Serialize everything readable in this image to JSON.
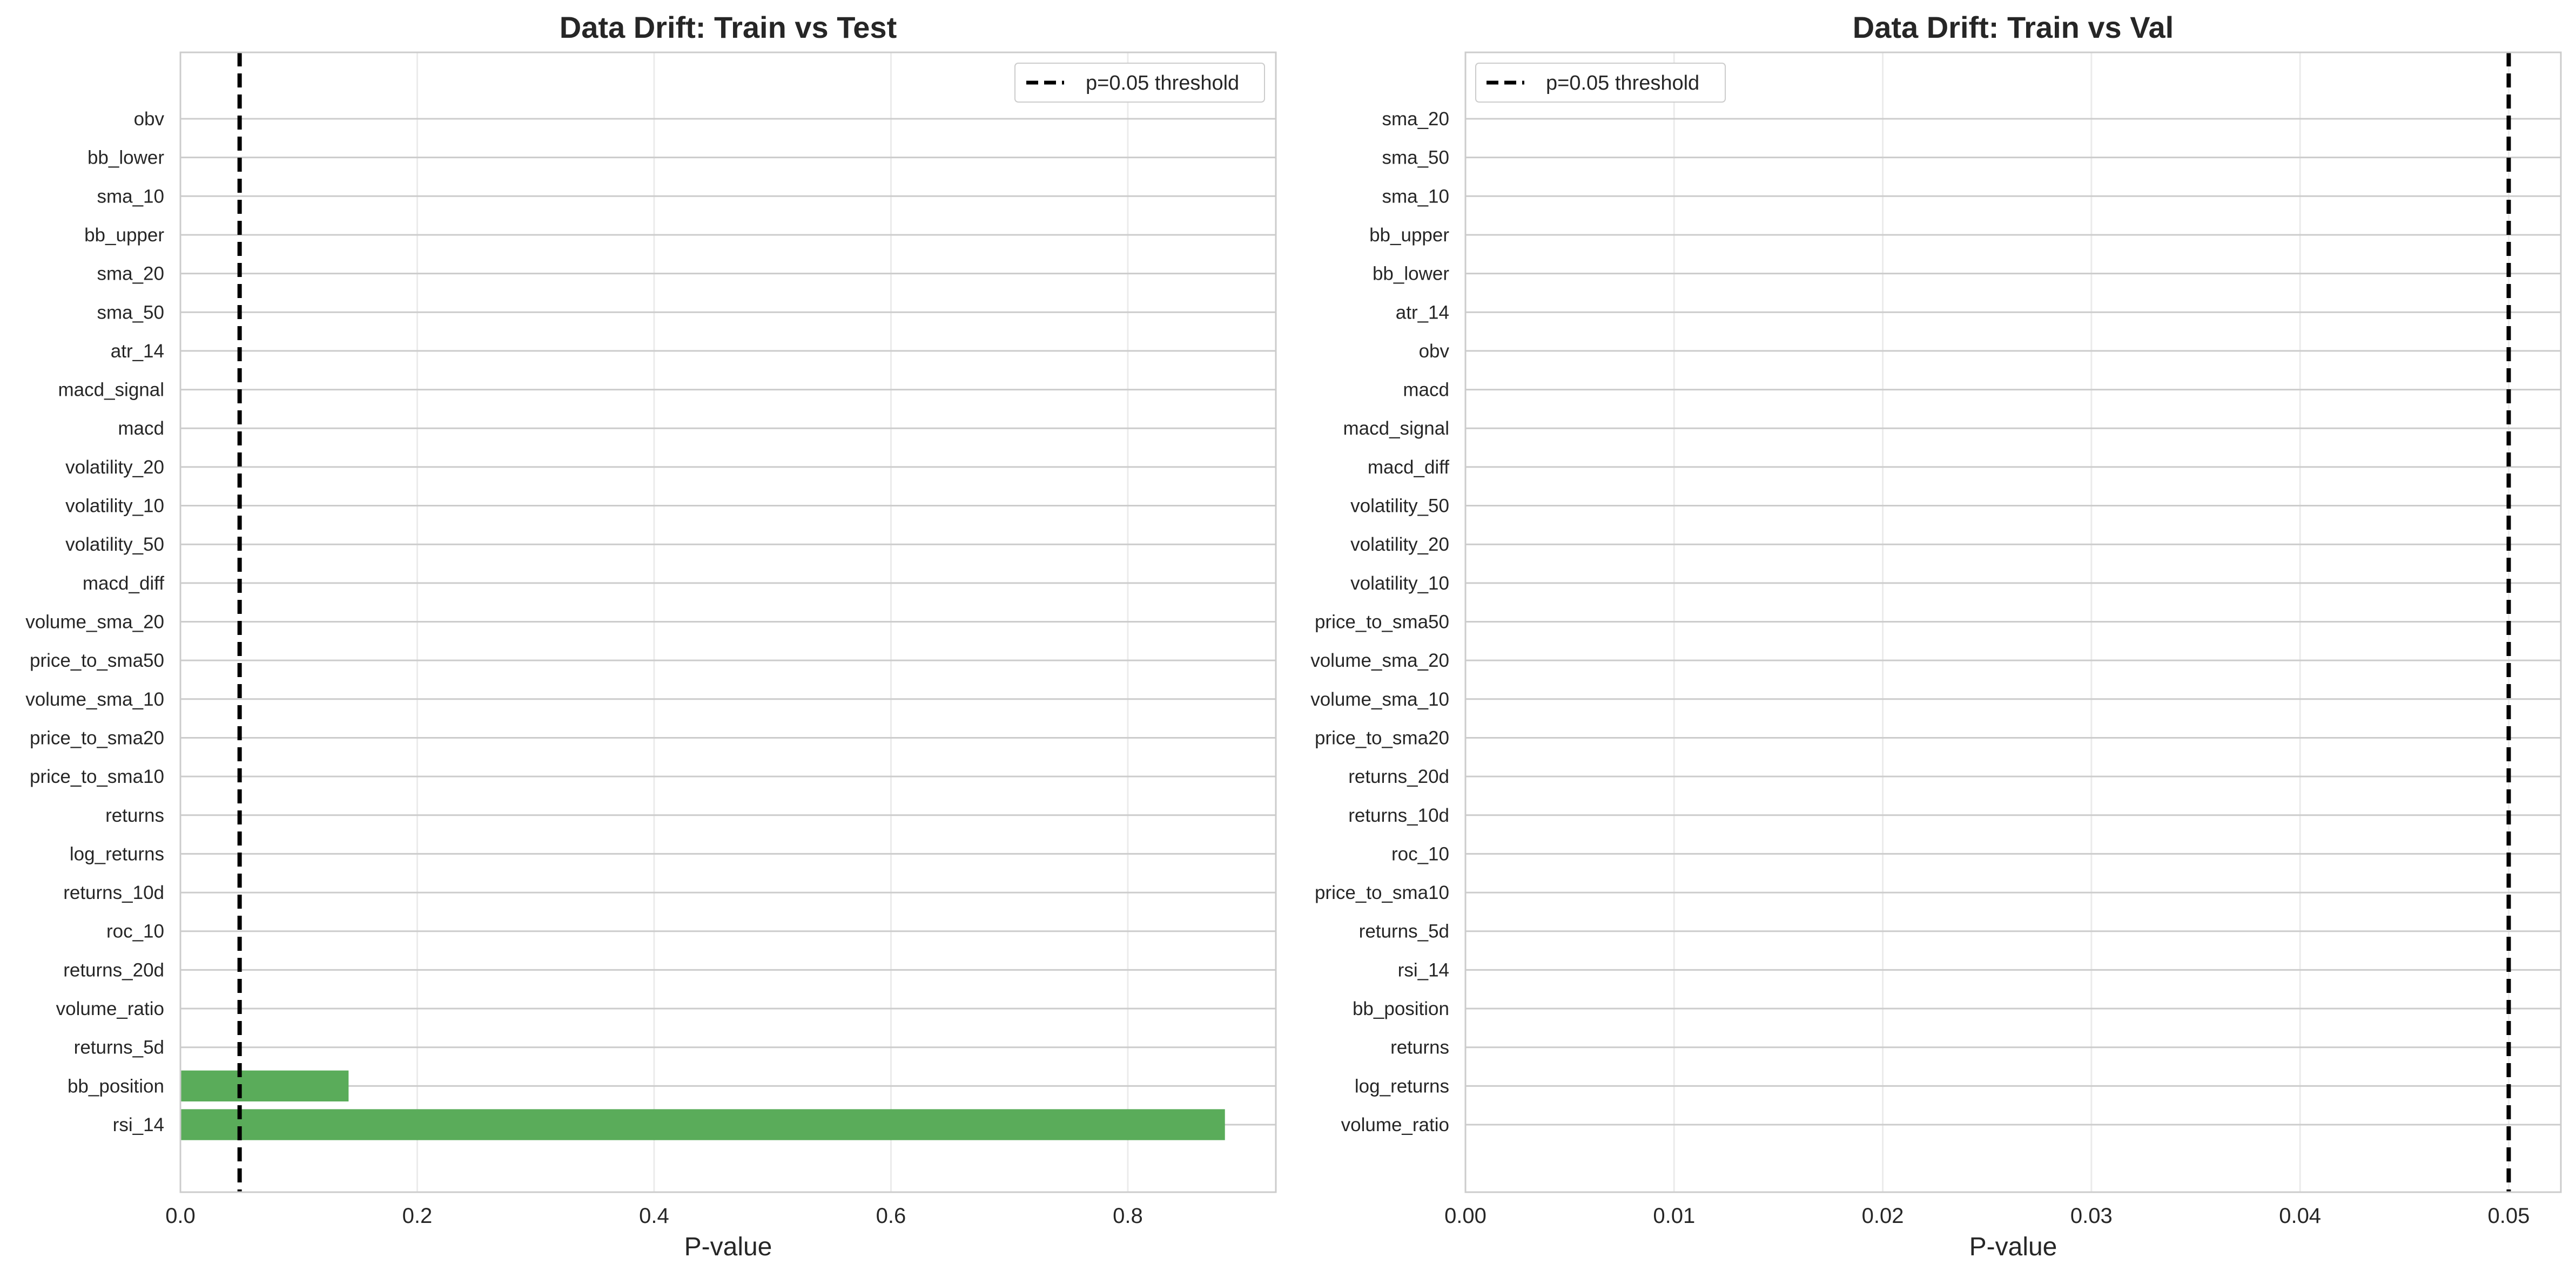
{
  "chart_data": [
    {
      "type": "bar",
      "orientation": "horizontal",
      "title": "Data Drift: Train vs Test",
      "xlabel": "P-value",
      "ylabel": "",
      "xlim": [
        0,
        0.925
      ],
      "xticks": [
        0.0,
        0.2,
        0.4,
        0.6,
        0.8
      ],
      "xtick_labels": [
        "0.0",
        "0.2",
        "0.4",
        "0.6",
        "0.8"
      ],
      "categories": [
        "obv",
        "bb_lower",
        "sma_10",
        "bb_upper",
        "sma_20",
        "sma_50",
        "atr_14",
        "macd_signal",
        "macd",
        "volatility_20",
        "volatility_10",
        "volatility_50",
        "macd_diff",
        "volume_sma_20",
        "price_to_sma50",
        "volume_sma_10",
        "price_to_sma20",
        "price_to_sma10",
        "returns",
        "log_returns",
        "returns_10d",
        "roc_10",
        "returns_20d",
        "volume_ratio",
        "returns_5d",
        "bb_position",
        "rsi_14"
      ],
      "values": [
        0,
        0,
        0,
        0,
        0,
        0,
        0,
        0,
        0,
        0,
        0,
        0,
        0,
        0,
        0,
        0,
        0,
        0,
        0,
        0,
        0,
        0,
        0,
        0,
        0,
        0.142,
        0.882
      ],
      "bar_color": "#5aac5a",
      "threshold": {
        "value": 0.05,
        "label": "p=0.05 threshold",
        "color": "#000000"
      },
      "legend_position": "upper right",
      "grid": true
    },
    {
      "type": "bar",
      "orientation": "horizontal",
      "title": "Data Drift: Train vs Val",
      "xlabel": "P-value",
      "ylabel": "",
      "xlim": [
        0,
        0.0525
      ],
      "xticks": [
        0.0,
        0.01,
        0.02,
        0.03,
        0.04,
        0.05
      ],
      "xtick_labels": [
        "0.00",
        "0.01",
        "0.02",
        "0.03",
        "0.04",
        "0.05"
      ],
      "categories": [
        "sma_20",
        "sma_50",
        "sma_10",
        "bb_upper",
        "bb_lower",
        "atr_14",
        "obv",
        "macd",
        "macd_signal",
        "macd_diff",
        "volatility_50",
        "volatility_20",
        "volatility_10",
        "price_to_sma50",
        "volume_sma_20",
        "volume_sma_10",
        "price_to_sma20",
        "returns_20d",
        "returns_10d",
        "roc_10",
        "price_to_sma10",
        "returns_5d",
        "rsi_14",
        "bb_position",
        "returns",
        "log_returns",
        "volume_ratio"
      ],
      "values": [
        0,
        0,
        0,
        0,
        0,
        0,
        0,
        0,
        0,
        0,
        0,
        0,
        0,
        0,
        0,
        0,
        0,
        0,
        0,
        0,
        0,
        0,
        0,
        0,
        0,
        0,
        0
      ],
      "bar_color": "#5aac5a",
      "threshold": {
        "value": 0.05,
        "label": "p=0.05 threshold",
        "color": "#000000"
      },
      "legend_position": "upper left",
      "grid": true
    }
  ]
}
